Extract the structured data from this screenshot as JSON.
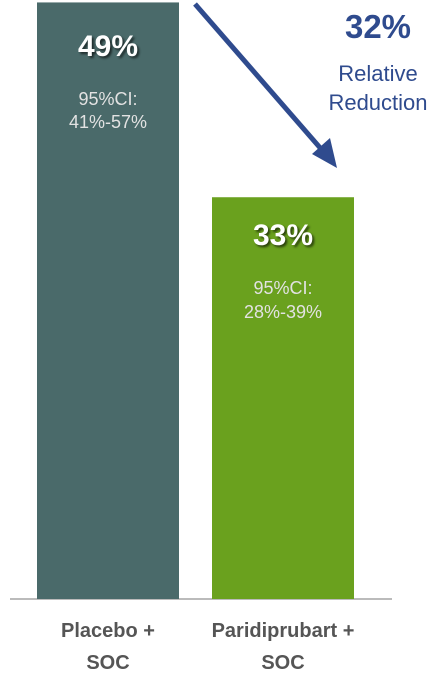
{
  "chart_data": {
    "type": "bar",
    "categories": [
      "Placebo + SOC",
      "Paridiprubart + SOC"
    ],
    "values": [
      49,
      33
    ],
    "value_labels": [
      "49%",
      "33%"
    ],
    "ci_labels": [
      "95%CI: 41%-57%",
      "95%CI: 28%-39%"
    ],
    "colors": [
      "#4a6a6a",
      "#6aa11e"
    ],
    "ylim": [
      0,
      49.2
    ],
    "annotation": {
      "value_label": "32%",
      "text": "Relative Reduction",
      "color": "#2f4b8e"
    }
  }
}
